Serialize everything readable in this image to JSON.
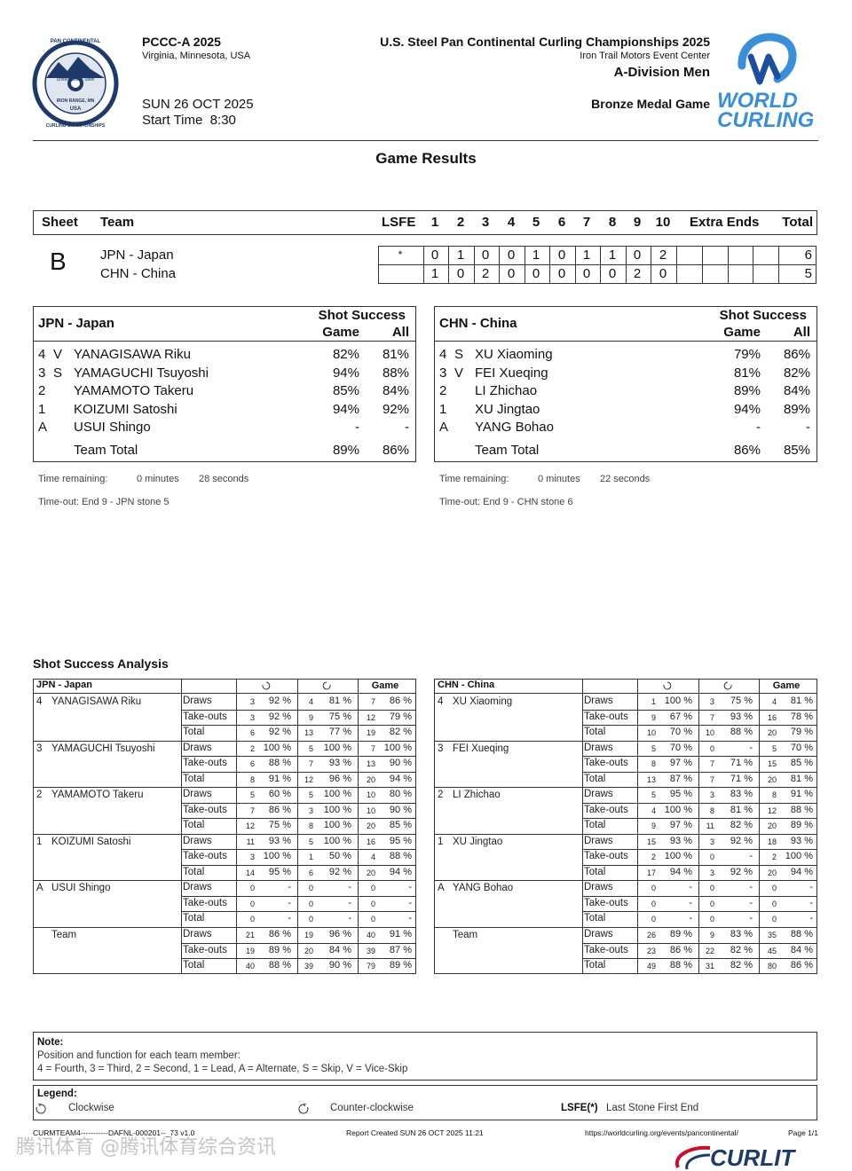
{
  "header": {
    "event_code": "PCCC-A 2025",
    "location": "Virginia, Minnesota, USA",
    "date": "SUN 26 OCT 2025",
    "start_time": "Start Time  8:30",
    "title": "U.S. Steel Pan Continental Curling Championships 2025",
    "venue": "Iron Trail Motors Event Center",
    "division": "A-Division Men",
    "game": "Bronze Medal Game",
    "logo_left": [
      "PAN CONTINENTAL",
      "CURLING CHAMPIONSHIPS",
      "United States Steel",
      "IRON RANGE, MN",
      "USA"
    ],
    "logo_right": [
      "WORLD",
      "CURLING"
    ]
  },
  "results": {
    "title": "Game Results",
    "columns": [
      "Sheet",
      "Team",
      "LSFE",
      "1",
      "2",
      "3",
      "4",
      "5",
      "6",
      "7",
      "8",
      "9",
      "10",
      "Extra Ends",
      "Total"
    ],
    "sheet": "B",
    "teams": [
      {
        "name": "JPN - Japan",
        "lsfe": "*",
        "ends": [
          "0",
          "1",
          "0",
          "0",
          "1",
          "0",
          "1",
          "1",
          "0",
          "2"
        ],
        "total": "6"
      },
      {
        "name": "CHN - China",
        "ends": [
          "1",
          "0",
          "2",
          "0",
          "0",
          "0",
          "0",
          "0",
          "2",
          "0"
        ],
        "total": "5"
      }
    ]
  },
  "players": {
    "columns": [
      "Shot Success",
      "Game",
      "All"
    ],
    "total_label": "Team Total",
    "teams": [
      {
        "rows": [
          {
            "pos": "4",
            "func": "V",
            "name": "YANAGISAWA Riku",
            "game": "82%",
            "all": "81%"
          },
          {
            "pos": "3",
            "func": "S",
            "name": "YAMAGUCHI Tsuyoshi",
            "game": "94%",
            "all": "88%"
          },
          {
            "pos": "2",
            "name": "YAMAMOTO Takeru",
            "game": "85%",
            "all": "84%"
          },
          {
            "pos": "1",
            "name": "KOIZUMI Satoshi",
            "game": "94%",
            "all": "92%"
          },
          {
            "pos": "A",
            "name": "USUI Shingo",
            "game": "-",
            "all": "-"
          }
        ],
        "total": {
          "game": "89%",
          "all": "86%"
        },
        "time_label": "Time remaining:",
        "minutes": "0 minutes",
        "seconds": "28 seconds",
        "timeout": "Time-out: End 9 - JPN stone 5"
      },
      {
        "rows": [
          {
            "pos": "4",
            "func": "S",
            "name": "XU Xiaoming",
            "game": "79%",
            "all": "86%"
          },
          {
            "pos": "3",
            "func": "V",
            "name": "FEI Xueqing",
            "game": "81%",
            "all": "82%"
          },
          {
            "pos": "2",
            "name": "LI Zhichao",
            "game": "89%",
            "all": "84%"
          },
          {
            "pos": "1",
            "name": "XU Jingtao",
            "game": "94%",
            "all": "89%"
          },
          {
            "pos": "A",
            "name": "YANG Bohao",
            "game": "-",
            "all": "-"
          }
        ],
        "total": {
          "game": "86%",
          "all": "85%"
        },
        "time_label": "Time remaining:",
        "minutes": "0 minutes",
        "seconds": "22 seconds",
        "timeout": "Time-out: End 9 - CHN stone 6"
      }
    ]
  },
  "analysis": {
    "title": "Shot Success Analysis",
    "game_label": "Game",
    "team_label": "Team",
    "teams": [
      {
        "blocks": [
          [
            [
              "Draws",
              "3",
              "92 %",
              "4",
              "81 %",
              "7",
              "86 %"
            ],
            [
              "Take-outs",
              "3",
              "92 %",
              "9",
              "75 %",
              "12",
              "79 %"
            ],
            [
              "Total",
              "6",
              "92 %",
              "13",
              "77 %",
              "19",
              "82 %"
            ]
          ],
          [
            [
              "Draws",
              "2",
              "100 %",
              "5",
              "100 %",
              "7",
              "100 %"
            ],
            [
              "Take-outs",
              "6",
              "88 %",
              "7",
              "93 %",
              "13",
              "90 %"
            ],
            [
              "Total",
              "8",
              "91 %",
              "12",
              "96 %",
              "20",
              "94 %"
            ]
          ],
          [
            [
              "Draws",
              "5",
              "60 %",
              "5",
              "100 %",
              "10",
              "80 %"
            ],
            [
              "Take-outs",
              "7",
              "86 %",
              "3",
              "100 %",
              "10",
              "90 %"
            ],
            [
              "Total",
              "12",
              "75 %",
              "8",
              "100 %",
              "20",
              "85 %"
            ]
          ],
          [
            [
              "Draws",
              "11",
              "93 %",
              "5",
              "100 %",
              "16",
              "95 %"
            ],
            [
              "Take-outs",
              "3",
              "100 %",
              "1",
              "50 %",
              "4",
              "88 %"
            ],
            [
              "Total",
              "14",
              "95 %",
              "6",
              "92 %",
              "20",
              "94 %"
            ]
          ],
          [
            [
              "Draws",
              "0",
              "-",
              "0",
              "-",
              "0",
              "-"
            ],
            [
              "Take-outs",
              "0",
              "-",
              "0",
              "-",
              "0",
              "-"
            ],
            [
              "Total",
              "0",
              "-",
              "0",
              "-",
              "0",
              "-"
            ]
          ],
          [
            [
              "Draws",
              "21",
              "86 %",
              "19",
              "96 %",
              "40",
              "91 %"
            ],
            [
              "Take-outs",
              "19",
              "89 %",
              "20",
              "84 %",
              "39",
              "87 %"
            ],
            [
              "Total",
              "40",
              "88 %",
              "39",
              "90 %",
              "79",
              "89 %"
            ]
          ]
        ]
      },
      {
        "blocks": [
          [
            [
              "Draws",
              "1",
              "100 %",
              "3",
              "75 %",
              "4",
              "81 %"
            ],
            [
              "Take-outs",
              "9",
              "67 %",
              "7",
              "93 %",
              "16",
              "78 %"
            ],
            [
              "Total",
              "10",
              "70 %",
              "10",
              "88 %",
              "20",
              "79 %"
            ]
          ],
          [
            [
              "Draws",
              "5",
              "70 %",
              "0",
              "-",
              "5",
              "70 %"
            ],
            [
              "Take-outs",
              "8",
              "97 %",
              "7",
              "71 %",
              "15",
              "85 %"
            ],
            [
              "Total",
              "13",
              "87 %",
              "7",
              "71 %",
              "20",
              "81 %"
            ]
          ],
          [
            [
              "Draws",
              "5",
              "95 %",
              "3",
              "83 %",
              "8",
              "91 %"
            ],
            [
              "Take-outs",
              "4",
              "100 %",
              "8",
              "81 %",
              "12",
              "88 %"
            ],
            [
              "Total",
              "9",
              "97 %",
              "11",
              "82 %",
              "20",
              "89 %"
            ]
          ],
          [
            [
              "Draws",
              "15",
              "93 %",
              "3",
              "92 %",
              "18",
              "93 %"
            ],
            [
              "Take-outs",
              "2",
              "100 %",
              "0",
              "-",
              "2",
              "100 %"
            ],
            [
              "Total",
              "17",
              "94 %",
              "3",
              "92 %",
              "20",
              "94 %"
            ]
          ],
          [
            [
              "Draws",
              "0",
              "-",
              "0",
              "-",
              "0",
              "-"
            ],
            [
              "Take-outs",
              "0",
              "-",
              "0",
              "-",
              "0",
              "-"
            ],
            [
              "Total",
              "0",
              "-",
              "0",
              "-",
              "0",
              "-"
            ]
          ],
          [
            [
              "Draws",
              "26",
              "89 %",
              "9",
              "83 %",
              "35",
              "88 %"
            ],
            [
              "Take-outs",
              "23",
              "86 %",
              "22",
              "82 %",
              "45",
              "84 %"
            ],
            [
              "Total",
              "49",
              "88 %",
              "31",
              "82 %",
              "80",
              "86 %"
            ]
          ]
        ]
      }
    ]
  },
  "note": {
    "title": "Note:",
    "line1": "Position and function for each team member:",
    "line2": "4 = Fourth, 3 = Third, 2 = Second, 1 = Lead, A = Alternate, S = Skip, V = Vice-Skip"
  },
  "legend": {
    "title": "Legend:",
    "clockwise": "Clockwise",
    "counter": "Counter-clockwise",
    "lsfe": "LSFE(*)",
    "lsfe_text": "Last Stone First End"
  },
  "footer": {
    "code": "CURMTEAM4-----------DAFNL-000201--_73 v1.0",
    "created": "Report Created  SUN 26 OCT 2025 11:21",
    "url": "https://worldcurling.org/events/pancontinental/",
    "page": "Page 1/1",
    "brand": "CURLIT"
  },
  "watermark": "腾讯体育 @腾讯体育综合资讯"
}
